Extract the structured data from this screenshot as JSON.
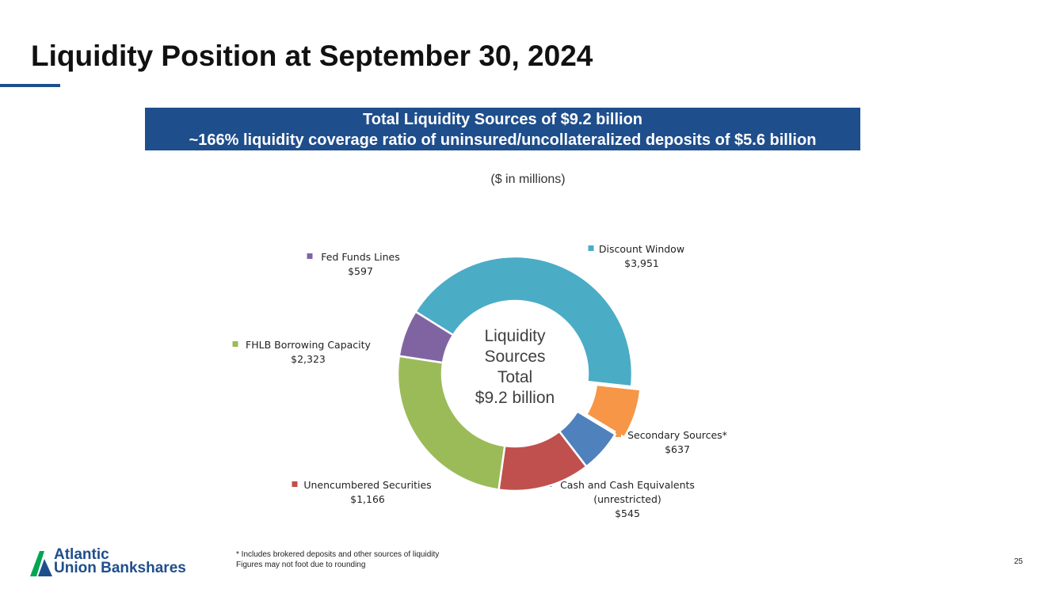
{
  "page": {
    "title": "Liquidity Position at September 30, 2024",
    "banner_line1": "Total Liquidity Sources of $9.2 billion",
    "banner_line2": "~166% liquidity coverage ratio of uninsured/uncollateralized deposits of $5.6 billion",
    "units": "($ in millions)",
    "footnote_line1": "* Includes brokered deposits and other sources of liquidity",
    "footnote_line2": "Figures may not foot due to rounding",
    "page_number": "25",
    "logo_line1": "Atlantic",
    "logo_line2": "Union Bankshares"
  },
  "chart_data": {
    "type": "pie",
    "style": "donut",
    "center_label": [
      "Liquidity",
      "Sources",
      "Total",
      "$9.2 billion"
    ],
    "slices": [
      {
        "name": "Discount Window",
        "value": 3951,
        "value_label": "$3,951",
        "color": "#4bacc6",
        "label_lines": [
          "Discount Window"
        ]
      },
      {
        "name": "Secondary Sources*",
        "value": 637,
        "value_label": "$637",
        "color": "#f79646",
        "exploded": true,
        "label_lines": [
          "Secondary Sources*"
        ]
      },
      {
        "name": "Cash and Cash Equivalents (unrestricted)",
        "value": 545,
        "value_label": "$545",
        "color": "#4f81bd",
        "label_lines": [
          "Cash and Cash Equivalents",
          "(unrestricted)"
        ]
      },
      {
        "name": "Unencumbered Securities",
        "value": 1166,
        "value_label": "$1,166",
        "color": "#c0504d",
        "label_lines": [
          "Unencumbered Securities"
        ]
      },
      {
        "name": "FHLB Borrowing Capacity",
        "value": 2323,
        "value_label": "$2,323",
        "color": "#9bbb59",
        "label_lines": [
          "FHLB Borrowing Capacity"
        ]
      },
      {
        "name": "Fed Funds Lines",
        "value": 597,
        "value_label": "$597",
        "color": "#8064a2",
        "label_lines": [
          "Fed Funds Lines"
        ]
      }
    ]
  }
}
